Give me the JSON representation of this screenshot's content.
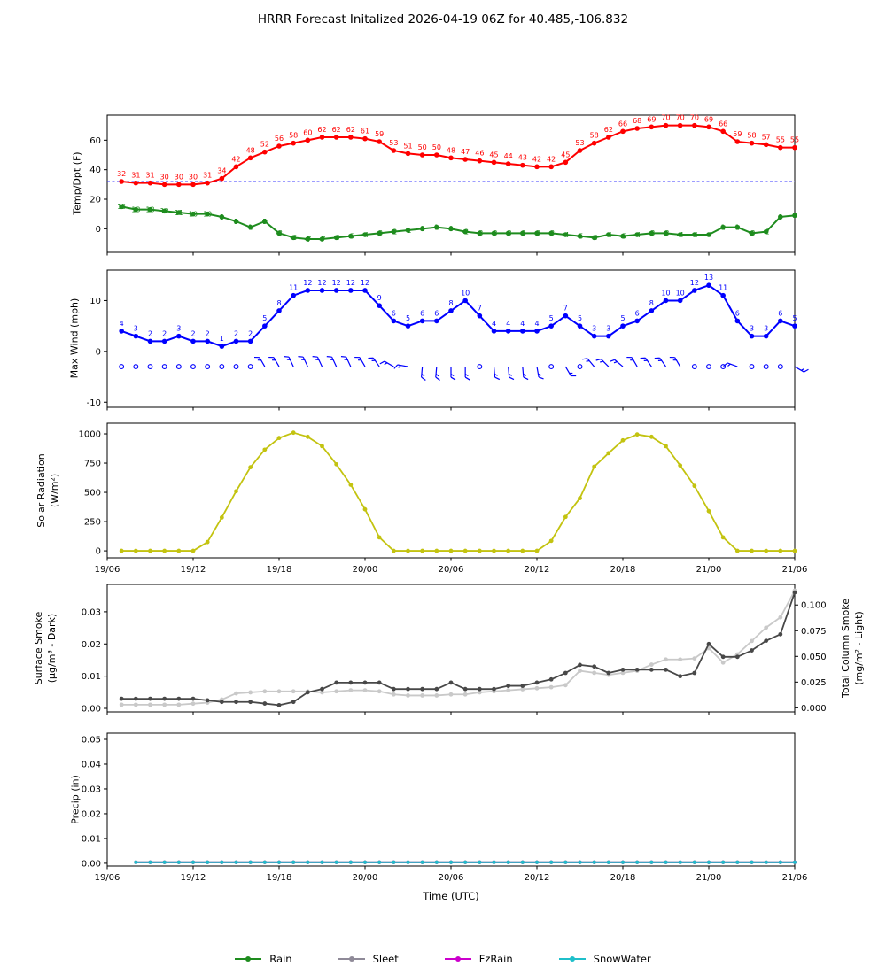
{
  "title": "HRRR Forecast Initalized 2026-04-19 06Z for 40.485,-106.832",
  "x": {
    "xlabel": "Time (UTC)",
    "tick_labels": [
      "19/06",
      "19/12",
      "19/18",
      "20/00",
      "20/06",
      "20/12",
      "20/18",
      "21/00",
      "21/06"
    ],
    "n_points": 48
  },
  "legend": {
    "items": [
      {
        "label": "Rain",
        "color": "#1e8c1e"
      },
      {
        "label": "Sleet",
        "color": "#8f8a98"
      },
      {
        "label": "FzRain",
        "color": "#cc00cc"
      },
      {
        "label": "SnowWater",
        "color": "#1fbfca"
      }
    ]
  },
  "chart_data": [
    {
      "id": "temp",
      "type": "line",
      "ylabel": "Temp/Dpt (F)",
      "yticks": [
        0,
        20,
        40,
        60
      ],
      "ylim": [
        -16,
        77
      ],
      "freezing_line": {
        "value": 32,
        "color": "#3b3bff",
        "style": "dashed"
      },
      "series": [
        {
          "name": "temperature_f",
          "color": "#ff0000",
          "label_position": "above",
          "values": [
            32,
            31,
            31,
            30,
            30,
            30,
            31,
            34,
            42,
            48,
            52,
            56,
            58,
            60,
            62,
            62,
            62,
            61,
            59,
            53,
            51,
            50,
            50,
            48,
            47,
            46,
            45,
            44,
            43,
            42,
            42,
            45,
            53,
            58,
            62,
            66,
            68,
            69,
            70,
            70,
            70,
            69,
            66,
            59,
            58,
            57,
            55,
            55
          ]
        },
        {
          "name": "dewpoint_f",
          "color": "#1e8c1e",
          "label_position": "center",
          "values": [
            15,
            13,
            13,
            12,
            11,
            10,
            10,
            8,
            5,
            1,
            5,
            -3,
            -6,
            -7,
            -7,
            -6,
            -5,
            -4,
            -3,
            -2,
            -1,
            0,
            1,
            0,
            -2,
            -3,
            -3,
            -3,
            -3,
            -3,
            -3,
            -4,
            -5,
            -6,
            -4,
            -5,
            -4,
            -3,
            -3,
            -4,
            -4,
            -4,
            1,
            1,
            -3,
            -2,
            8,
            9
          ]
        }
      ]
    },
    {
      "id": "wind",
      "type": "line",
      "ylabel": "Max Wind (mph)",
      "yticks": [
        -10,
        0,
        10
      ],
      "ylim": [
        -11,
        16
      ],
      "series": [
        {
          "name": "max_wind_mph",
          "color": "#0000ff",
          "label_position": "above",
          "values": [
            4,
            3,
            2,
            2,
            3,
            2,
            2,
            1,
            2,
            2,
            5,
            8,
            11,
            12,
            12,
            12,
            12,
            12,
            9,
            6,
            5,
            6,
            6,
            8,
            10,
            7,
            4,
            4,
            4,
            4,
            5,
            7,
            5,
            3,
            3,
            5,
            6,
            8,
            10,
            10,
            12,
            13,
            11,
            6,
            3,
            3,
            6,
            5
          ]
        }
      ],
      "barbs": {
        "y_value": -3,
        "color": "#0000ff",
        "glyphs": [
          "c",
          "c",
          "c",
          "c",
          "c",
          "c",
          "c",
          "c",
          "c",
          "c",
          -30,
          -30,
          -25,
          -25,
          -25,
          -25,
          -25,
          -30,
          -35,
          -60,
          -80,
          185,
          185,
          180,
          180,
          "c",
          175,
          175,
          175,
          170,
          "c",
          150,
          "c",
          -40,
          -45,
          -50,
          -30,
          -35,
          -35,
          -30,
          "c",
          "c",
          "c",
          -70,
          "c",
          "c",
          "c",
          120
        ]
      }
    },
    {
      "id": "solar",
      "type": "line",
      "ylabel": "Solar Radiation\n(W/m²)",
      "yticks": [
        0,
        250,
        500,
        750,
        1000
      ],
      "ylim": [
        -60,
        1091
      ],
      "show_x_tick_labels": true,
      "series": [
        {
          "name": "solar_radiation_wm2",
          "color": "#c3c310",
          "values": [
            0,
            0,
            0,
            0,
            0,
            0,
            75,
            285,
            510,
            715,
            865,
            965,
            1010,
            975,
            895,
            740,
            565,
            355,
            115,
            0,
            0,
            0,
            0,
            0,
            0,
            0,
            0,
            0,
            0,
            0,
            85,
            290,
            450,
            720,
            835,
            945,
            995,
            975,
            895,
            730,
            555,
            340,
            115,
            0,
            0,
            0,
            0,
            0
          ]
        }
      ]
    },
    {
      "id": "smoke",
      "type": "line",
      "ylabel": "Surface Smoke\n(µg/m³ - Dark)",
      "ylabel_right": "Total Column Smoke\n(mg/m² - Light)",
      "yticks_left": [
        "0.00",
        "0.01",
        "0.02",
        "0.03"
      ],
      "yticks_right": [
        "0.000",
        "0.025",
        "0.050",
        "0.075",
        "0.100"
      ],
      "ylim_left": [
        -0.0011,
        0.0385
      ],
      "ylim_right": [
        -0.004,
        0.12
      ],
      "series": [
        {
          "name": "total_column_smoke",
          "axis": "right",
          "color": "#c9c9c9",
          "values": [
            0.003,
            0.003,
            0.003,
            0.003,
            0.003,
            0.004,
            0.005,
            0.008,
            0.014,
            0.015,
            0.016,
            0.016,
            0.016,
            0.016,
            0.015,
            0.016,
            0.017,
            0.017,
            0.016,
            0.013,
            0.012,
            0.012,
            0.012,
            0.013,
            0.013,
            0.015,
            0.016,
            0.017,
            0.018,
            0.019,
            0.02,
            0.022,
            0.036,
            0.034,
            0.032,
            0.034,
            0.036,
            0.042,
            0.047,
            0.047,
            0.048,
            0.058,
            0.044,
            0.052,
            0.065,
            0.078,
            0.088,
            0.114
          ]
        },
        {
          "name": "surface_smoke",
          "axis": "left",
          "color": "#484848",
          "values": [
            0.003,
            0.003,
            0.003,
            0.003,
            0.003,
            0.003,
            0.0025,
            0.002,
            0.002,
            0.002,
            0.0015,
            0.001,
            0.002,
            0.005,
            0.006,
            0.008,
            0.008,
            0.008,
            0.008,
            0.006,
            0.006,
            0.006,
            0.006,
            0.008,
            0.006,
            0.006,
            0.006,
            0.007,
            0.007,
            0.008,
            0.009,
            0.011,
            0.0135,
            0.013,
            0.011,
            0.012,
            0.012,
            0.012,
            0.012,
            0.01,
            0.011,
            0.02,
            0.016,
            0.016,
            0.018,
            0.021,
            0.023,
            0.036
          ]
        }
      ]
    },
    {
      "id": "precip",
      "type": "line",
      "ylabel": "Precip (in)",
      "yticks": [
        "0.00",
        "0.01",
        "0.02",
        "0.03",
        "0.04",
        "0.05"
      ],
      "ylim": [
        -0.0011,
        0.0525
      ],
      "show_x_tick_labels": true,
      "series": [
        {
          "name": "Rain",
          "color": "#1e8c1e",
          "flat_value": 0
        },
        {
          "name": "Sleet",
          "color": "#8f8a98",
          "flat_value": 0
        },
        {
          "name": "FzRain",
          "color": "#cc00cc",
          "flat_value": 0
        },
        {
          "name": "SnowWater",
          "color": "#1fbfca",
          "flat_value": 0
        }
      ]
    }
  ]
}
